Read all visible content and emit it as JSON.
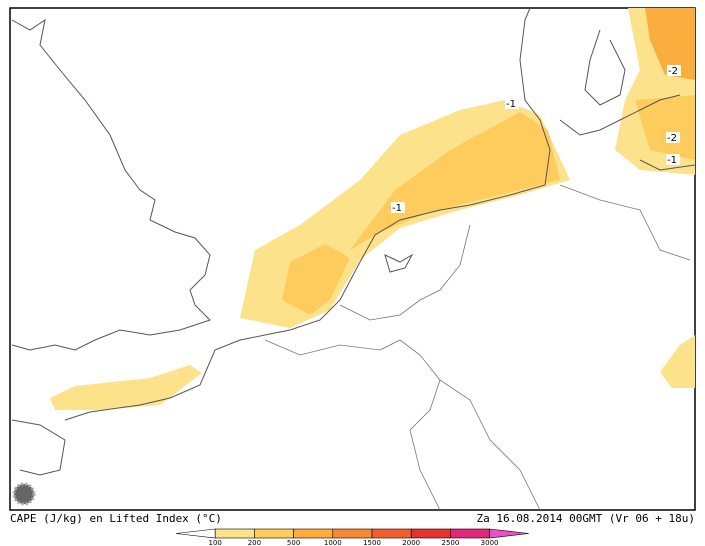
{
  "footer": {
    "left": "CAPE (J/kg) en Lifted Index (°C)",
    "right": "Za 16.08.2014 00GMT (Vr 06 + 18u)"
  },
  "contour_labels": [
    "-1",
    "-1",
    "-2",
    "-2",
    "-1"
  ],
  "legend": {
    "ticks": [
      100,
      200,
      500,
      1000,
      1500,
      2000,
      2500,
      3000
    ],
    "colors": [
      "#ffffff",
      "#fde28c",
      "#fdcc5c",
      "#fbad3e",
      "#f78a36",
      "#f0602e",
      "#e4322c",
      "#e0287a",
      "#ee4fc4"
    ]
  }
}
